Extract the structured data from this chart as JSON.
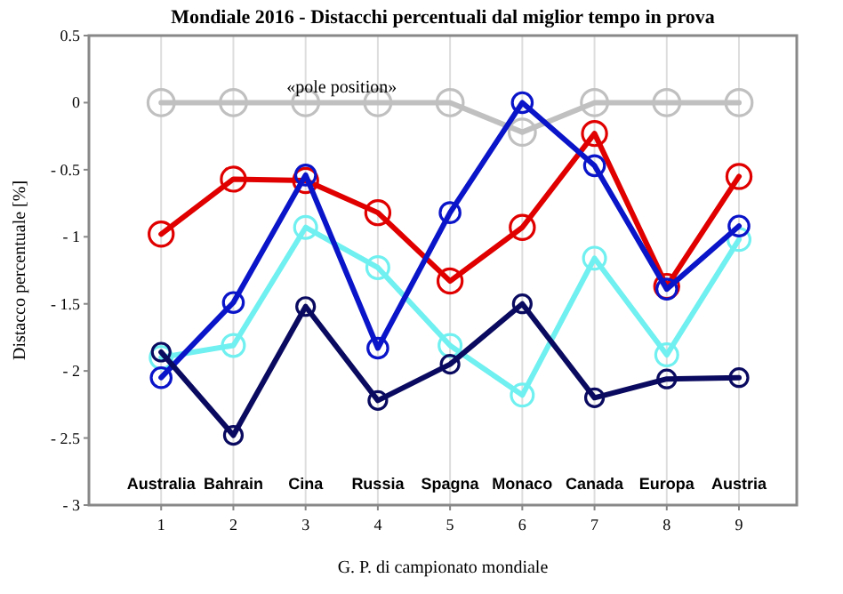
{
  "chart_data": {
    "type": "line",
    "title": "Mondiale 2016 - Distacchi percentuali dal miglior tempo in prova",
    "xlabel": "G. P. di campionato mondiale",
    "ylabel": "Distacco percentuale  [%]",
    "x": [
      1,
      2,
      3,
      4,
      5,
      6,
      7,
      8,
      9
    ],
    "xlim": [
      0,
      9.8
    ],
    "xticks": [
      1,
      2,
      3,
      4,
      5,
      6,
      7,
      8,
      9
    ],
    "ylim": [
      -3,
      0.5
    ],
    "yticks": [
      {
        "value": -3,
        "label": "- 3"
      },
      {
        "value": -2.5,
        "label": "- 2.5"
      },
      {
        "value": -2,
        "label": "- 2"
      },
      {
        "value": -1.5,
        "label": "- 1.5"
      },
      {
        "value": -1,
        "label": "- 1"
      },
      {
        "value": -0.5,
        "label": "- 0.5"
      },
      0,
      0.5
    ],
    "grid": "x",
    "marker": "circle",
    "line_style": "solid",
    "series": [
      {
        "color": "#c0c0c0",
        "values": [
          0,
          0,
          0,
          0,
          0,
          -0.22,
          0,
          0,
          0
        ]
      },
      {
        "color": "#e00000",
        "values": [
          -0.98,
          -0.57,
          -0.58,
          -0.82,
          -1.33,
          -0.93,
          -0.23,
          -1.37,
          -0.55
        ]
      },
      {
        "color": "#70f0f0",
        "values": [
          -1.9,
          -1.81,
          -0.93,
          -1.23,
          -1.81,
          -2.18,
          -1.16,
          -1.88,
          -1.02
        ]
      },
      {
        "color": "#0a14c8",
        "values": [
          -2.05,
          -1.49,
          -0.54,
          -1.83,
          -0.82,
          0,
          -0.47,
          -1.39,
          -0.92
        ]
      },
      {
        "color": "#0a0a60",
        "values": [
          -1.86,
          -2.48,
          -1.52,
          -2.22,
          -1.95,
          -1.5,
          -2.2,
          -2.06,
          -2.05
        ]
      }
    ],
    "annotations": [
      "«pole position»",
      "Australia",
      "Bahrain",
      "Cina",
      "Russia",
      "Spagna",
      "Monaco",
      "Canada",
      "Europa",
      "Austria"
    ]
  }
}
